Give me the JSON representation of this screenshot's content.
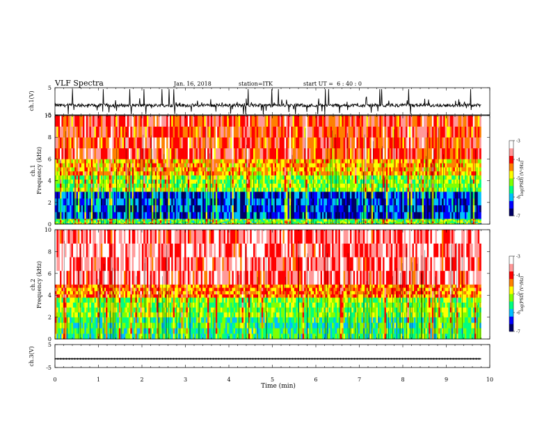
{
  "header": {
    "title": "VLF Spectra",
    "date": "Jan. 16, 2018",
    "station": "station=ITK",
    "start": "start UT =  6 : 40 : 0"
  },
  "colorbar": {
    "label": "log(PSD) (V²/Hz)",
    "ticks": [
      "-3",
      "-4",
      "-5",
      "-6",
      "-7"
    ],
    "colors": [
      "#000066",
      "#0000ff",
      "#00bfff",
      "#00ff80",
      "#80ff00",
      "#ffff00",
      "#ff8000",
      "#ff0000",
      "#ff9999",
      "#ffffff"
    ]
  },
  "chart_data": [
    {
      "type": "line",
      "ylabel": "ch.1(V)",
      "ylim": [
        -5,
        5
      ],
      "yticks": [
        "5",
        "-5"
      ],
      "xlim": [
        0,
        10
      ],
      "baseline": -1.5,
      "note": "noisy waveform with impulsive spikes"
    },
    {
      "type": "heatmap",
      "ylabel": "ch.1 Frequency (kHz)",
      "ylim": [
        0,
        10
      ],
      "yticks": [
        "0",
        "2",
        "4",
        "6",
        "8",
        "10"
      ],
      "xlim": [
        0,
        10
      ],
      "zlim": [
        -7,
        -3
      ],
      "zlabel": "log(PSD) (V²/Hz)",
      "bands": [
        {
          "f_low": 0,
          "f_high": 0.5,
          "level": -5.3
        },
        {
          "f_low": 0.5,
          "f_high": 3,
          "level": -6.3
        },
        {
          "f_low": 3,
          "f_high": 4.5,
          "level": -5.2
        },
        {
          "f_low": 4.5,
          "f_high": 6,
          "level": -4.6
        },
        {
          "f_low": 6,
          "f_high": 10,
          "level": -4.1
        }
      ]
    },
    {
      "type": "heatmap",
      "ylabel": "ch.2 Frequency (kHz)",
      "ylim": [
        0,
        10
      ],
      "yticks": [
        "0",
        "2",
        "4",
        "6",
        "8",
        "10"
      ],
      "xlim": [
        0,
        10
      ],
      "zlim": [
        -7,
        -3
      ],
      "zlabel": "log(PSD) (V²/Hz)",
      "bands": [
        {
          "f_low": 0,
          "f_high": 2,
          "level": -5.5
        },
        {
          "f_low": 2,
          "f_high": 3.8,
          "level": -5.2
        },
        {
          "f_low": 3.8,
          "f_high": 5,
          "level": -4.4
        },
        {
          "f_low": 5,
          "f_high": 10,
          "level": -3.7
        }
      ]
    },
    {
      "type": "line",
      "ylabel": "ch.3(V)",
      "ylim": [
        -5,
        5
      ],
      "yticks": [
        "5",
        "-5"
      ],
      "xlim": [
        0,
        10
      ],
      "baseline": -1.2,
      "note": "flat trace with small periodic ticks"
    }
  ],
  "xaxis": {
    "label": "Time (min)",
    "ticks": [
      "0",
      "1",
      "2",
      "3",
      "4",
      "5",
      "6",
      "7",
      "8",
      "9",
      "10"
    ],
    "data_end": 9.8
  }
}
